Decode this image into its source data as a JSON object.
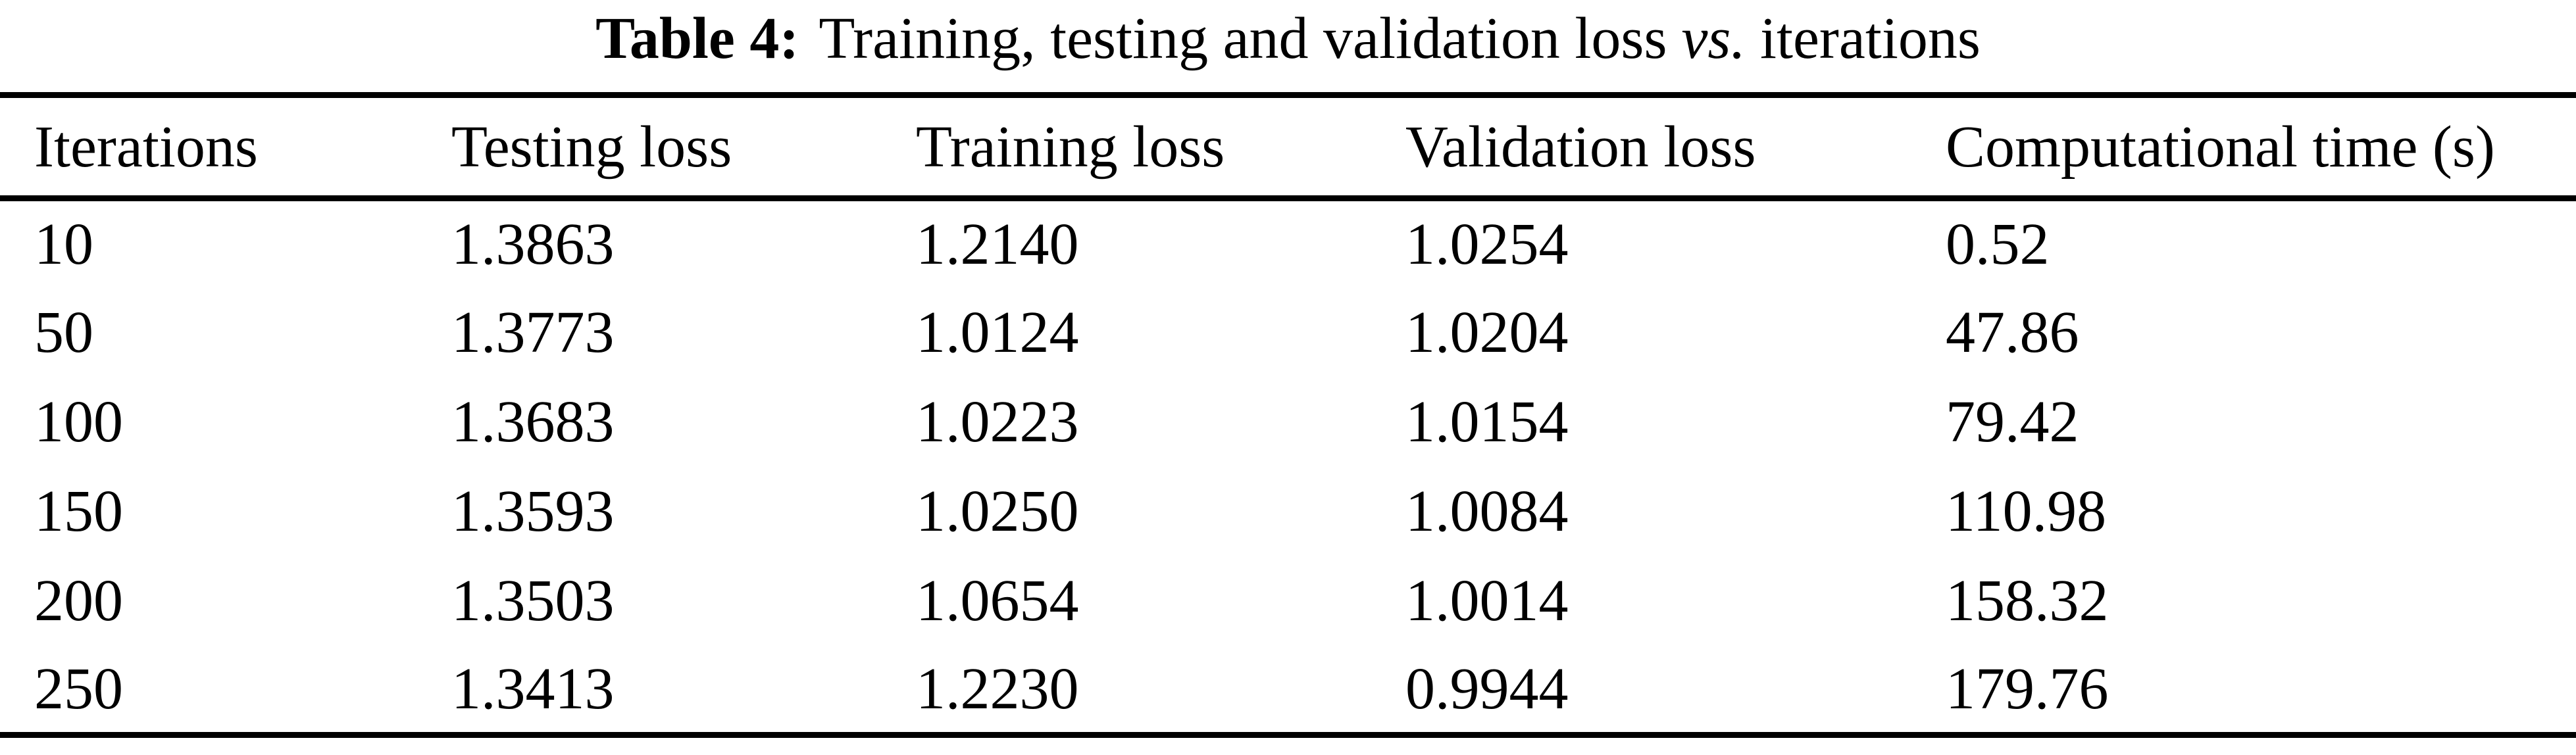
{
  "caption": {
    "label": "Table 4:",
    "text_before_vs": "Training, testing and validation loss",
    "vs": "vs.",
    "text_after_vs": "iterations"
  },
  "table": {
    "columns": [
      "Iterations",
      "Testing loss",
      "Training loss",
      "Validation loss",
      "Computational time (s)"
    ],
    "rows": [
      [
        "10",
        "1.3863",
        "1.2140",
        "1.0254",
        "0.52"
      ],
      [
        "50",
        "1.3773",
        "1.0124",
        "1.0204",
        "47.86"
      ],
      [
        "100",
        "1.3683",
        "1.0223",
        "1.0154",
        "79.42"
      ],
      [
        "150",
        "1.3593",
        "1.0250",
        "1.0084",
        "110.98"
      ],
      [
        "200",
        "1.3503",
        "1.0654",
        "1.0014",
        "158.32"
      ],
      [
        "250",
        "1.3413",
        "1.2230",
        "0.9944",
        "179.76"
      ]
    ]
  },
  "chart_data": {
    "type": "table",
    "title": "Table 4: Training, testing and validation loss vs. iterations",
    "columns": [
      "Iterations",
      "Testing loss",
      "Training loss",
      "Validation loss",
      "Computational time (s)"
    ],
    "iterations": [
      10,
      50,
      100,
      150,
      200,
      250
    ],
    "series": [
      {
        "name": "Testing loss",
        "values": [
          1.3863,
          1.3773,
          1.3683,
          1.3593,
          1.3503,
          1.3413
        ]
      },
      {
        "name": "Training loss",
        "values": [
          1.214,
          1.0124,
          1.0223,
          1.025,
          1.0654,
          1.223
        ]
      },
      {
        "name": "Validation loss",
        "values": [
          1.0254,
          1.0204,
          1.0154,
          1.0084,
          1.0014,
          0.9944
        ]
      },
      {
        "name": "Computational time (s)",
        "values": [
          0.52,
          47.86,
          79.42,
          110.98,
          158.32,
          179.76
        ]
      }
    ]
  },
  "colors": {
    "text": "#000000",
    "background": "#ffffff",
    "rule": "#000000"
  }
}
